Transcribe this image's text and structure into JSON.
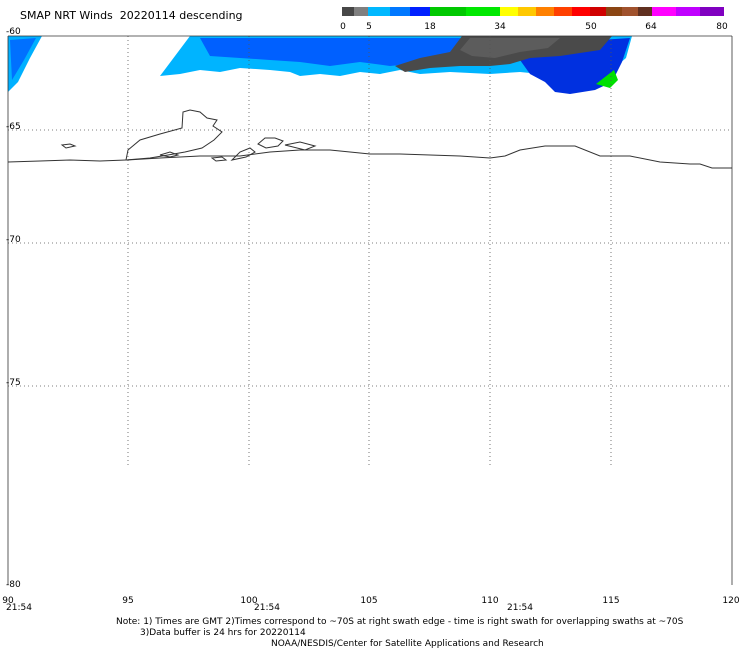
{
  "title": "SMAP NRT Winds  20220114 descending",
  "colorbar": {
    "labels": [
      "0",
      "5",
      "18",
      "34",
      "50",
      "64",
      "80"
    ],
    "segments": [
      {
        "color": "#474747"
      },
      {
        "color": "#7f7f7f"
      },
      {
        "color": "#00b8ff"
      },
      {
        "color": "#0078ff"
      },
      {
        "color": "#0020ff"
      },
      {
        "color": "#00c800"
      },
      {
        "color": "#00e800"
      },
      {
        "color": "#ffff00"
      },
      {
        "color": "#ffc800"
      },
      {
        "color": "#ff8000"
      },
      {
        "color": "#ff4000"
      },
      {
        "color": "#ff0000"
      },
      {
        "color": "#d00000"
      },
      {
        "color": "#8b4513"
      },
      {
        "color": "#a0522d"
      },
      {
        "color": "#603020"
      },
      {
        "color": "#ff00ff"
      },
      {
        "color": "#c000ff"
      },
      {
        "color": "#8000c0"
      }
    ]
  },
  "lat_labels": [
    "-60",
    "-65",
    "-70",
    "-75",
    "-80"
  ],
  "lon_labels": [
    "90",
    "95",
    "100",
    "105",
    "110",
    "115",
    "120"
  ],
  "times": [
    "21:54",
    "21:54",
    "21:54"
  ],
  "note_line1": "Note: 1) Times are GMT 2)Times correspond to ~70S at right swath edge - time is right swath for overlapping swaths at ~70S",
  "note_line2": "3)Data buffer is 24 hrs for 20220114",
  "credit": "NOAA/NESDIS/Center for Satellite Applications and Research"
}
